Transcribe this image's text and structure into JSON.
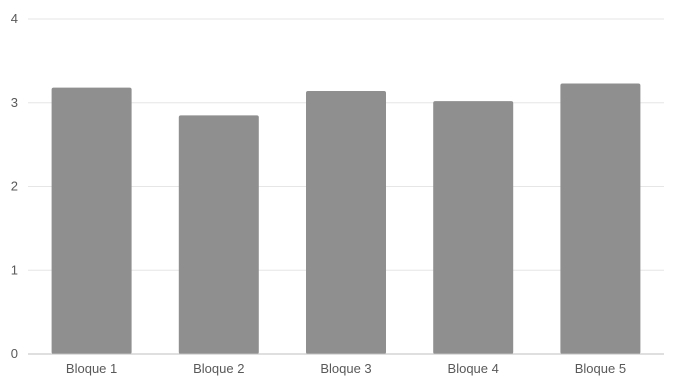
{
  "chart_data": {
    "type": "bar",
    "categories": [
      "Bloque 1",
      "Bloque 2",
      "Bloque 3",
      "Bloque 4",
      "Bloque 5"
    ],
    "values": [
      3.18,
      2.85,
      3.14,
      3.02,
      3.23
    ],
    "title": "",
    "xlabel": "",
    "ylabel": "",
    "ylim": [
      0,
      4
    ],
    "yticks": [
      "0",
      "1",
      "2",
      "3",
      "4"
    ],
    "grid": true,
    "legend": "none",
    "bar_color": "#8f8f8f",
    "grid_color": "#e6e6e6",
    "axis_color": "#bfbfbf"
  }
}
